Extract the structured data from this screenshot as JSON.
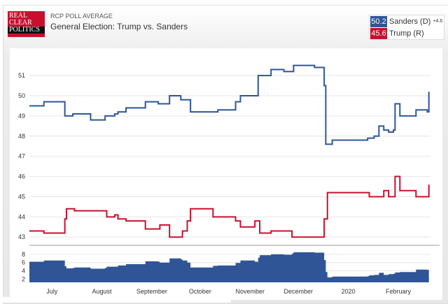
{
  "header": {
    "logo": [
      "REAL",
      "CLEAR",
      "POLITICS"
    ],
    "supertitle": "RCP POLL AVERAGE",
    "title": "General Election: Trump vs. Sanders"
  },
  "legend": [
    {
      "value": "50.2",
      "name": "Sanders (D)",
      "spread": "+4.6",
      "color": "#2f5597"
    },
    {
      "value": "45.6",
      "name": "Trump (R)",
      "color": "#c8102e"
    }
  ],
  "chart_data": {
    "type": "line",
    "x_range": [
      "2019-06-17",
      "2020-02-21"
    ],
    "ylim": [
      42.8,
      51.8
    ],
    "yticks": [
      43,
      44,
      45,
      46,
      47,
      48,
      49,
      50,
      51
    ],
    "spread_ylim": [
      1.2,
      9
    ],
    "spread_yticks": [
      2,
      4,
      6,
      8
    ],
    "xticks": [
      {
        "label": "July",
        "date": "2019-07-01"
      },
      {
        "label": "August",
        "date": "2019-08-01"
      },
      {
        "label": "September",
        "date": "2019-09-01"
      },
      {
        "label": "October",
        "date": "2019-10-01"
      },
      {
        "label": "November",
        "date": "2019-11-01"
      },
      {
        "label": "December",
        "date": "2019-12-01"
      },
      {
        "label": "2020",
        "date": "2020-01-01"
      },
      {
        "label": "February",
        "date": "2020-02-01"
      }
    ],
    "grid": true,
    "series": [
      {
        "name": "Sanders (D)",
        "color": "#2f5597",
        "points": [
          [
            "2019-06-17",
            49.5
          ],
          [
            "2019-06-26",
            49.7
          ],
          [
            "2019-07-09",
            49.0
          ],
          [
            "2019-07-14",
            49.1
          ],
          [
            "2019-07-25",
            48.8
          ],
          [
            "2019-08-03",
            49.0
          ],
          [
            "2019-08-09",
            49.1
          ],
          [
            "2019-08-11",
            49.2
          ],
          [
            "2019-08-16",
            49.4
          ],
          [
            "2019-08-28",
            49.7
          ],
          [
            "2019-09-05",
            49.6
          ],
          [
            "2019-09-12",
            50.0
          ],
          [
            "2019-09-19",
            49.8
          ],
          [
            "2019-09-25",
            49.2
          ],
          [
            "2019-10-12",
            49.3
          ],
          [
            "2019-10-23",
            49.7
          ],
          [
            "2019-10-26",
            50.0
          ],
          [
            "2019-11-06",
            51.0
          ],
          [
            "2019-11-14",
            51.3
          ],
          [
            "2019-11-22",
            51.2
          ],
          [
            "2019-11-28",
            51.5
          ],
          [
            "2019-12-11",
            51.4
          ],
          [
            "2019-12-17",
            50.5
          ],
          [
            "2019-12-18",
            47.6
          ],
          [
            "2019-12-22",
            47.8
          ],
          [
            "2020-01-13",
            47.9
          ],
          [
            "2020-01-17",
            48.0
          ],
          [
            "2020-01-20",
            48.5
          ],
          [
            "2020-01-23",
            48.3
          ],
          [
            "2020-01-26",
            48.2
          ],
          [
            "2020-01-29",
            48.3
          ],
          [
            "2020-01-30",
            49.6
          ],
          [
            "2020-02-02",
            49.0
          ],
          [
            "2020-02-12",
            49.3
          ],
          [
            "2020-02-19",
            49.2
          ],
          [
            "2020-02-20",
            50.2
          ]
        ]
      },
      {
        "name": "Trump (R)",
        "color": "#c8102e",
        "points": [
          [
            "2019-06-17",
            43.3
          ],
          [
            "2019-06-26",
            43.2
          ],
          [
            "2019-07-09",
            43.9
          ],
          [
            "2019-07-10",
            44.4
          ],
          [
            "2019-07-15",
            44.3
          ],
          [
            "2019-08-04",
            44.0
          ],
          [
            "2019-08-09",
            44.1
          ],
          [
            "2019-08-11",
            43.9
          ],
          [
            "2019-08-16",
            43.8
          ],
          [
            "2019-08-28",
            43.4
          ],
          [
            "2019-09-06",
            43.6
          ],
          [
            "2019-09-12",
            43.0
          ],
          [
            "2019-09-20",
            43.3
          ],
          [
            "2019-09-23",
            43.8
          ],
          [
            "2019-09-25",
            44.4
          ],
          [
            "2019-10-09",
            44.0
          ],
          [
            "2019-10-23",
            43.8
          ],
          [
            "2019-10-26",
            43.5
          ],
          [
            "2019-11-04",
            43.8
          ],
          [
            "2019-11-07",
            43.2
          ],
          [
            "2019-11-14",
            43.3
          ],
          [
            "2019-11-27",
            43.0
          ],
          [
            "2019-12-17",
            43.9
          ],
          [
            "2019-12-19",
            45.2
          ],
          [
            "2020-01-14",
            45.0
          ],
          [
            "2020-01-23",
            45.3
          ],
          [
            "2020-01-26",
            45.0
          ],
          [
            "2020-01-30",
            46.0
          ],
          [
            "2020-02-02",
            45.3
          ],
          [
            "2020-02-12",
            45.0
          ],
          [
            "2020-02-20",
            45.6
          ]
        ]
      }
    ]
  }
}
